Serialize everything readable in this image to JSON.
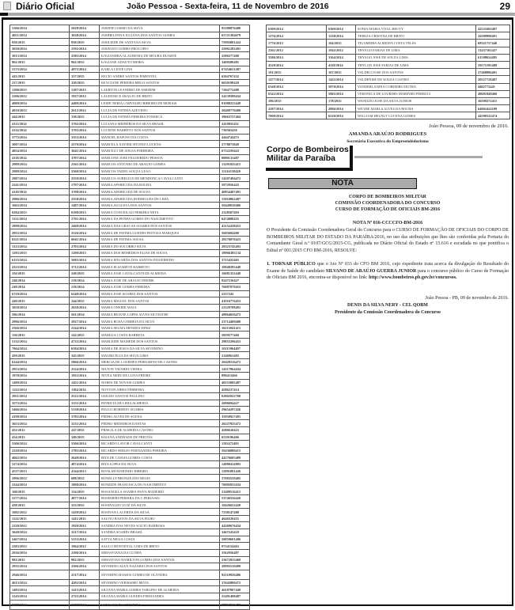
{
  "header": {
    "brand": "Diário Oficial",
    "date": "João Pessoa - Sexta-feira, 11 de Novembro de 2016",
    "page": "29"
  },
  "left_table": [
    [
      "5366/2014",
      "5028/2014",
      "JOSEPH COSMO DA SILVA",
      "95380876400"
    ],
    [
      "4051/2014",
      "3638/2014",
      "JOSIHELENNA JULIANA DOS SANTOS GOMES",
      "65721384679"
    ],
    [
      "958/2015",
      "958/2015",
      "JOSILEIDE DE SANTANA SILVA",
      "75993081424"
    ],
    [
      "3020/2014",
      "2592/2014",
      "JOSINATO GOMES PROCOPIO",
      "25061282491"
    ],
    [
      "3013/2014",
      "2585/2014",
      "KALIANDRA GLAUBENIA DE MOURA DUARTE",
      "2586577408"
    ],
    [
      "962/2015",
      "962/2015",
      "KALIANE ADAUTO MEIRA",
      "3400580481"
    ],
    [
      "5375/2014",
      "4975/2014",
      "KARLA LEITE LINS",
      "67454631487"
    ],
    [
      "443/2015",
      "337/2015",
      "KECIO ANDRE SANTOS PIMENTEL",
      "6504767432"
    ],
    [
      "237/2015",
      "220/2015",
      "KEYCIANE PEREIRA MELO SANTOS",
      "6650198420"
    ],
    [
      "1290/2015",
      "1287/2015",
      "LAERTON LEANDRO DE AMORIM",
      "7204772488"
    ],
    [
      "2206/2012",
      "1937/2012",
      "LAUDENICE ARAUJO DE BRITO",
      "54139589434"
    ],
    [
      "4809/2014",
      "4489/2014",
      "LEIDE NERIA CARVALHO RIBEIRO DE MORAIS",
      "91088233449"
    ],
    [
      "4010/2012",
      "2612/2012",
      "LUCIA DE FATIMA AZEVEDO",
      "20409770400"
    ],
    [
      "444/2015",
      "338/2015",
      "LUCIA DE FATIMA PEREIRA FONSECA",
      "39663737404"
    ],
    [
      "4113/2014",
      "3702/2014",
      "LUCIANA MEDEIROS DA SILVA BRASIL",
      "2410955451"
    ],
    [
      "4114/2014",
      "3703/2014",
      "LUCIENE BARRETO DOS SANTOS",
      "736565426"
    ],
    [
      "3775/2014",
      "3353/2014",
      "MANOEL RAPOSO DA COSTA",
      "4444744472"
    ],
    [
      "3007/2014",
      "2579/2014",
      "MARCELA XAVIER SITONIO LUCENA",
      "2778073849"
    ],
    [
      "4054/2014",
      "3641/2014",
      "MARCELO DE SOUSA FERREIRA",
      "6732259443"
    ],
    [
      "4118/2014",
      "3707/2014",
      "MARCONE JOSE FIGUEIREDO PESSOA",
      "8080133487"
    ],
    [
      "2989/2014",
      "2561/2014",
      "MARCOS ANTONIO DE ARAUJO GOMES",
      "13291825415"
    ],
    [
      "2988/2014",
      "2560/2014",
      "MARCOS TADEU SOUZA LEAO",
      "15116158420"
    ],
    [
      "2987/2014",
      "2559/2014",
      "MARCUS AURELIUS DE MENDONCA CAVALCANTI",
      "14207494472"
    ],
    [
      "2241/2014",
      "1797/2014",
      "MARIA APARECIDA DA ROCHA",
      "5972056443"
    ],
    [
      "4119/2014",
      "3708/2014",
      "MARIA APARECIDA DE SOUSA",
      "40834487491"
    ],
    [
      "2986/2014",
      "2558/2014",
      "MARIA APARECIDA RODRIGUES DE LIMA",
      "15810862487"
    ],
    [
      "1665/2014",
      "1487/2014",
      "MARIA AUGUSTA DOS SANTOS",
      "50449810406"
    ],
    [
      "0284/2015",
      "0198/2015",
      "MARIA CONCEICAO PEREIRA NETA",
      "2328507493"
    ],
    [
      "3121/2014",
      "2701/2014",
      "MARIA DA PENHA GOMES DO NASCIMENTO",
      "6474088435"
    ],
    [
      "2898/2014",
      "2468/2014",
      "MARIA DAS GRACAS SOARES DOS SANTOS",
      "45152438453"
    ],
    [
      "2955/2014",
      "2526/2014",
      "MARIA DE FATIMA GUEDES FEITOZA MARQUES",
      "5685684400"
    ],
    [
      "6521/2014",
      "6041/2014",
      "MARIA DE FATIMA SOUSA",
      "20276870423"
    ],
    [
      "3123/2014",
      "2703/2014",
      "MARIA DO SOCORRO SILVA",
      "28323745493"
    ],
    [
      "1293/2015",
      "1290/2015",
      "MARIA DOS REMEDIOS ELIAS DE SOUSA",
      "18966385134"
    ],
    [
      "6155/2014",
      "5683/2014",
      "MARIA EDUARDA DOS SANTOS FIGUEIREDO",
      "3725422465"
    ],
    [
      "4123/2014",
      "3712/2014",
      "MARIA ELIZABETE BARRETO",
      "10948295449"
    ],
    [
      "356/2015",
      "248/2015",
      "MARIA JOSE CAVALCANTI DE ALMEIDA",
      "16081352449"
    ],
    [
      "240/2014",
      "218/2014",
      "MARIA JOSE DE ARAUJO FREIRE",
      "9247216427"
    ],
    [
      "249/2014",
      "218/2014",
      "MARIA JOSE GOMES PEREIRA",
      "76087870453"
    ],
    [
      "6729/2014",
      "6249/2014",
      "MARIA JOSE SOARES DOS SANTOS",
      "2237245"
    ],
    [
      "449/2015",
      "344/2015",
      "MARIA MIGUEL DOS SANTOS",
      "41016776453"
    ],
    [
      "3058/2014",
      "2630/2014",
      "MARIA ONEIDE MAIA",
      "22329788491"
    ],
    [
      "596/2014",
      "561/2014",
      "MARIA REJANE LOPES ALVES SILVESTRE",
      "49864656472"
    ],
    [
      "2996/2014",
      "2927/2014",
      "MARIA ROSA CORREIA DA SILVA",
      "23714489400"
    ],
    [
      "2566/2014",
      "2144/2014",
      "MARIA SELMA MENDES DINIZ",
      "16215041415"
    ],
    [
      "156/2015",
      "142/2015",
      "MARILIA COSTA BARRETA",
      "5059577460"
    ],
    [
      "5132/2014",
      "4733/2014",
      "MARLEIDE MAMEDE DOS SANTOS",
      "29053296453"
    ],
    [
      "7064/2014",
      "6584/2014",
      "MARIA DE JESUS DA SILVA SEVERINO",
      "10115964497"
    ],
    [
      "459/2015",
      "345/2015",
      "MAURICELIA DA SILVA LIMA",
      "2146961482"
    ],
    [
      "6344/2014",
      "5866/2014",
      "MERCIA DE LOURDES PEREGRINO DE CASTRO",
      "20428216472"
    ],
    [
      "2953/2014",
      "2524/2014",
      "NILTON TAVARES VIEIRA",
      "14217864434"
    ],
    [
      "1978/2014",
      "1933/2014",
      "NIVEA NERY DE LUNA FREIRE",
      "898415466"
    ],
    [
      "1489/2014",
      "1451/2014",
      "NORES DE NOVAIS GOMES",
      "40553085487"
    ],
    [
      "1222/2014",
      "1184/2014",
      "NOYTON AIRES FERREIRA",
      "4586237414"
    ],
    [
      "2951/2014",
      "2522/2014",
      "OZILDO SANTOS PAULINO",
      "82802922700"
    ],
    [
      "3573/2014",
      "3151/2014",
      "PATRICIA DE LIMA ALMEIDA",
      "2696694427"
    ],
    [
      "5466/2014",
      "5138/2014",
      "PAULO ROBERTO SOARES",
      "29654297426"
    ],
    [
      "4198/2014",
      "3785/2014",
      "PEDRO ALVES DE SOUSA",
      "35950927491"
    ],
    [
      "3653/2014",
      "3231/2014",
      "PEDRO MEDEIROS DANTAS",
      "26227925472"
    ],
    [
      "452/2015",
      "247/2015",
      "PRISCILA DE ALMEIDA CASTRO",
      "4586610423"
    ],
    [
      "454/2015",
      "349/2015",
      "RAIANA ANDRADE DE FREITAS",
      "6539196466"
    ],
    [
      "5506/2014",
      "5506/2014",
      "RICARDO LAVOR CAVALCANTI",
      "1192472403"
    ],
    [
      "2229/2014",
      "1785/2014",
      "RICARDO SERGIO FERNANDES PEREIRA",
      "50436880415"
    ],
    [
      "4062/2014",
      "2649/2014",
      "RITA DE CASSIA GOMES COSTA",
      "44276685489"
    ],
    [
      "5274/2014",
      "4874/2014",
      "RITA LOPES DA SILVA",
      "14880414803"
    ],
    [
      "4537/2013",
      "4144/2013",
      "RIVALMI MARINHO RIBEIRO",
      "12891081426"
    ],
    [
      "2996/2012",
      "688/2012",
      "RONELLY BRONZEADO REGIS",
      "37683539405"
    ],
    [
      "2244/2014",
      "1800/2014",
      "RONEIDE FRANCISCA DO NASCIMENTO",
      "76995832434"
    ],
    [
      "168/2015",
      "154/2015",
      "ROSANGELA SOARES PAIVA MADEIRO",
      "21409516415"
    ],
    [
      "5277/2014",
      "4877/2014",
      "ROSEMERI PEREIRA DA C PERIASSU",
      "53746556420"
    ],
    [
      "458/2015",
      "353/2015",
      "ROSINALDO LUIZ DA SILVA",
      "10426652420"
    ],
    [
      "1682/2012",
      "1439/2012",
      "ROSIVAN LACERDA DA SILVA",
      "7238147488"
    ],
    [
      "1122/2015",
      "1411/2015",
      "SALVIO BASTOS DA SILVA FILHO",
      "4646520455"
    ],
    [
      "2239/2012",
      "1920/2012",
      "SANDRA DAS NEVES SOUTO BARBOSA",
      "44269676434"
    ],
    [
      "3648/2014",
      "3217/2014",
      "SANDRA SOARES BRASIL",
      "3467243410"
    ],
    [
      "5467/2014",
      "5133/2014",
      "SATYA NELIA COSTA",
      "50859601406"
    ],
    [
      "2283/2012",
      "1964/2012",
      "SAULO MONTENAL LIMA DE BRITO",
      "9734154463"
    ],
    [
      "2636/2014",
      "2206/2014",
      "SEBASTIANA DA CUNHA",
      "3562956487"
    ],
    [
      "983/2015",
      "982/2015",
      "SEBASTIAO HAMILTON GOMES DOS SANTOS",
      "23672925468"
    ],
    [
      "2935/2014",
      "2506/2014",
      "SEVERINO ALEX NAZARIO DOS SANTOS",
      "20993519499"
    ],
    [
      "2946/2014",
      "2517/2014",
      "SEVERINO RAMOS GOMES DE OLIVEIRA",
      "92310926486"
    ],
    [
      "4613/2014",
      "4202/2014",
      "SEVERINO VERISSIMO MOTA",
      "37642880472"
    ],
    [
      "1493/2014",
      "1415/2014",
      "SILVANA MARIA GOMES TARGINO DE ALMEIDA",
      "46187807449"
    ],
    [
      "3145/2014",
      "2725/2014",
      "SILVANA MARIA GUEDES FERNANDES",
      "25491498487"
    ],
    [
      "6988/2014",
      "6508/2014",
      "SONIA MARIA TEIXEIRA",
      "38863815472"
    ]
  ],
  "right_table": [
    [
      "6309/2014",
      "6309/2014",
      "SONIA MARIA VITAL BEUTY",
      "42521692487"
    ],
    [
      "1276/2014",
      "1238/2014",
      "TEREZA CRISTINA DE BRITO",
      "26509998491"
    ],
    [
      "1776/2015",
      "164/2015",
      "TIGAMERIS ALMEIDA COSTA TELES",
      "68321727440"
    ],
    [
      "2261/2012",
      "1942/2012",
      "THYAGO FARIAS DE LIMA",
      "31437102427"
    ],
    [
      "3586/2014",
      "3164/2014",
      "THYAGO JOSE DE SOUZA LIMA",
      "61508624495"
    ],
    [
      "4520/2014",
      "4118/2014",
      "THYLON JOSE FARIAS DE LIMA",
      "59575195489"
    ],
    [
      "181/2015",
      "167/2015",
      "VALDECI JOSE DOS SANTOS",
      "27468886491"
    ],
    [
      "1477/2014",
      "1425/2014",
      "VALDENISE DE SOUZA CASTRO",
      "20527728487"
    ],
    [
      "6348/2014",
      "5870/2014",
      "VANDERLANDIA CORDEIRO DUTRA",
      "4402772441"
    ],
    [
      "6343/2014",
      "5865/2014",
      "VERONICA DE LOURDES MARINHO PERRUCI",
      "48681849468"
    ],
    [
      "186/2015",
      "178/2015",
      "WANILDO JOSE DA SILVA JUNIOR",
      "36509272415"
    ],
    [
      "2287/2014",
      "2806/2014",
      "WEYRE MARLA ALVES DA ROCHA",
      "64062424189"
    ],
    [
      "7000/2014",
      "6520/2014",
      "WILLIAM HELNUT LUCENA GOMES",
      "44598532474"
    ]
  ],
  "sign1": {
    "place_date": "João Pessoa, 09 de novembro de 2016.",
    "name": "AMANDA ARAÚJO RODRIGUES",
    "role": "Secretária Executiva do Empreendedorismo"
  },
  "section": {
    "org_line1": "Corpo de Bombeiros",
    "org_line2": "Militar da Paraíba",
    "label": "NOTA"
  },
  "nota": {
    "head1": "CORPO DE BOMBEIROS MILITAR",
    "head2": "COMISSÃO COORDENADORA DO CONCURSO",
    "head3": "CURSO DE FORMAÇÃO DE OFICIAIS BM-2016",
    "title": "NOTA Nº 016-CCCCFO-BM-2016",
    "intro": "O Presidente da Comissão Coordenadora Geral do Concurso para o CURSO DE FORMAÇÃO DE OFICIAIS DO CORPO DE BOMBEIROS MILITAR DO ESTADO DA PARAÍBA/2016, no uso das atribuições que lhes são conferidas pela Portaria do Comandante Geral n.º 0107/GCG/2015-CG, publicada no Diário Oficial do Estado nº 15.616 e escudada no que pontifica o Edital nº 001/2015 CFO BM-2016, RESOLVE:",
    "item_num": "1. TORNAR",
    "item_b1": "PÚBLICO",
    "item_t1": " que o Ato Nº 033 do CFO BM 2016, cujo expediente trata acerca da divulgação do Resultado do Exame de Saúde do candidato ",
    "item_b2": "SILVANO DE ARAÚJO GUERRA JUNIOR",
    "item_t2": " para o concurso público do Curso de Formação de Oficiais BM 2016, encontra-se disponível no link: ",
    "item_link": "http://www.bombeiros.pb.gov.br/concursos.",
    "place_date": "João Pessoa - PB, 09 de novembro de 2016.",
    "signer": "DENIS DA SILVA NERY - CEL QOBM",
    "signer_role": "Presidente da Comissão Coordenadora do Concurso"
  }
}
